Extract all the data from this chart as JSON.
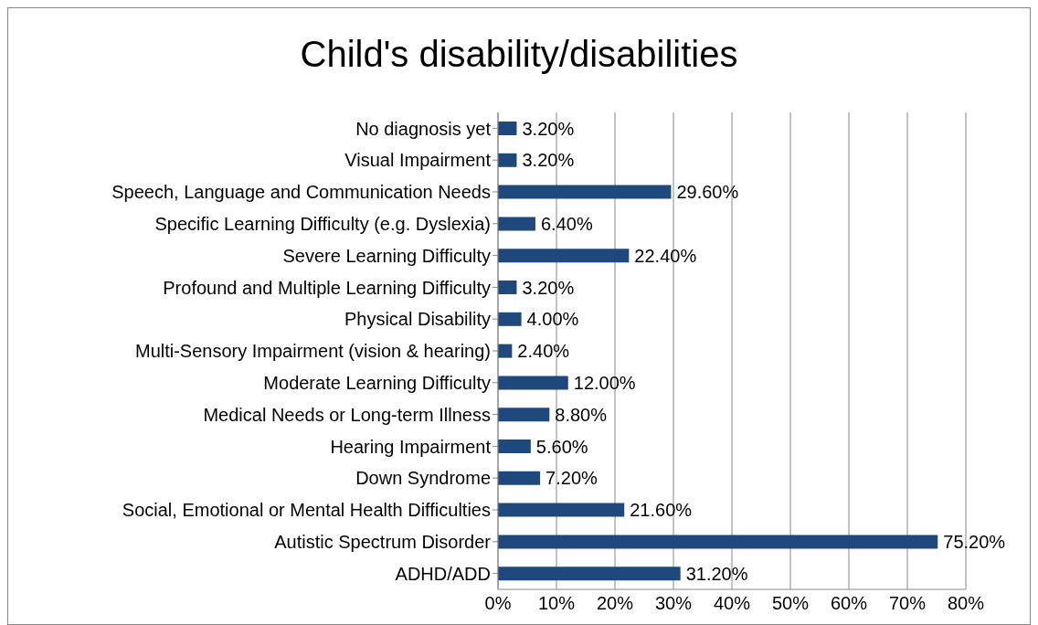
{
  "chart_data": {
    "type": "bar",
    "orientation": "horizontal",
    "title": "Child's disability/disabilities",
    "categories": [
      "No diagnosis yet",
      "Visual Impairment",
      "Speech, Language and Communication Needs",
      "Specific Learning Difficulty (e.g. Dyslexia)",
      "Severe Learning Difficulty",
      "Profound and Multiple Learning Difficulty",
      "Physical Disability",
      "Multi-Sensory Impairment (vision & hearing)",
      "Moderate Learning Difficulty",
      "Medical Needs or Long-term Illness",
      "Hearing Impairment",
      "Down Syndrome",
      "Social, Emotional or Mental Health Difficulties",
      "Autistic Spectrum Disorder",
      "ADHD/ADD"
    ],
    "values": [
      3.2,
      3.2,
      29.6,
      6.4,
      22.4,
      3.2,
      4.0,
      2.4,
      12.0,
      8.8,
      5.6,
      7.2,
      21.6,
      75.2,
      31.2
    ],
    "value_labels": [
      "3.20%",
      "3.20%",
      "29.60%",
      "6.40%",
      "22.40%",
      "3.20%",
      "4.00%",
      "2.40%",
      "12.00%",
      "8.80%",
      "5.60%",
      "7.20%",
      "21.60%",
      "75.20%",
      "31.20%"
    ],
    "color": "#1f497d",
    "xlim": [
      0,
      80
    ],
    "xticks": [
      {
        "value": 0,
        "label": "0%"
      },
      {
        "value": 10,
        "label": "10%"
      },
      {
        "value": 20,
        "label": "20%"
      },
      {
        "value": 30,
        "label": "30%"
      },
      {
        "value": 40,
        "label": "40%"
      },
      {
        "value": 50,
        "label": "50%"
      },
      {
        "value": 60,
        "label": "60%"
      },
      {
        "value": 70,
        "label": "70%"
      },
      {
        "value": 80,
        "label": "80%"
      }
    ],
    "grid": "x",
    "legend": false
  }
}
